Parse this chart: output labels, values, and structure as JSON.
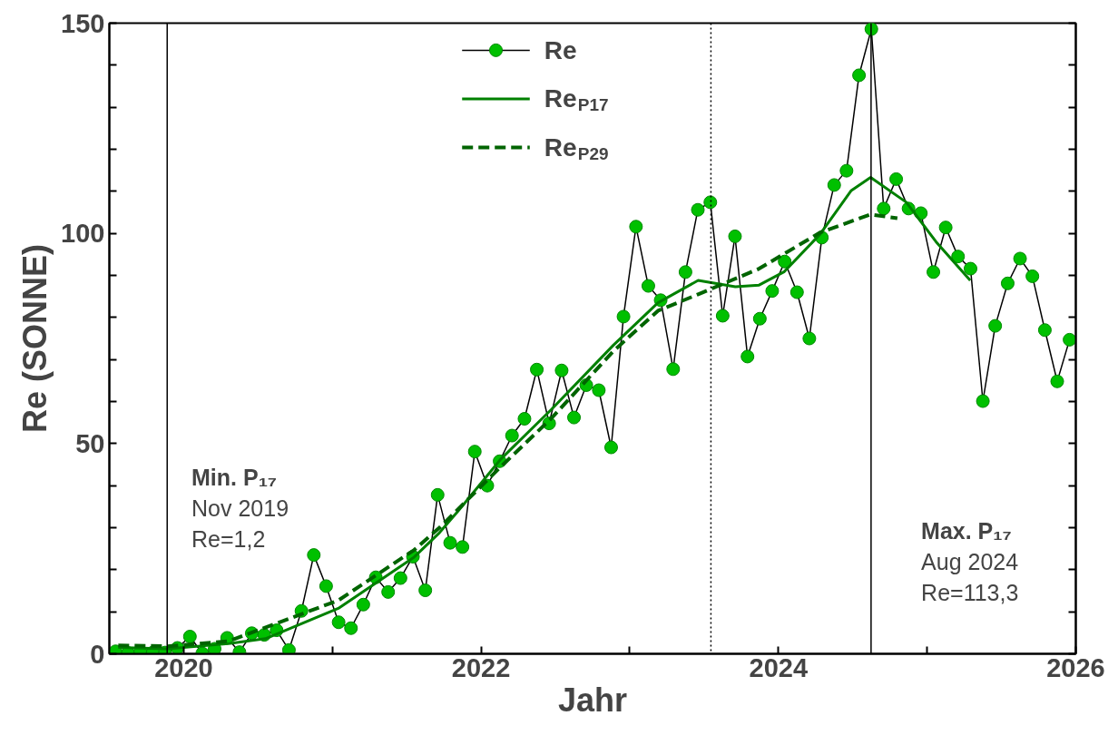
{
  "chart_data": {
    "type": "line",
    "xlabel": "Jahr",
    "ylabel": "Re (SONNE)",
    "xlim": [
      2019.5,
      2026
    ],
    "xticks": [
      2020,
      {
        "value": 2021,
        "label": null
      },
      2022,
      {
        "value": 2023,
        "label": null
      },
      2024,
      {
        "value": 2025,
        "label": null
      },
      2026
    ],
    "ylim": [
      0,
      150
    ],
    "yticks": [
      0,
      {
        "value": 10,
        "label": null
      },
      {
        "value": 20,
        "label": null
      },
      {
        "value": 30,
        "label": null
      },
      {
        "value": 40,
        "label": null
      },
      50,
      {
        "value": 60,
        "label": null
      },
      {
        "value": 70,
        "label": null
      },
      {
        "value": 80,
        "label": null
      },
      {
        "value": 90,
        "label": null
      },
      100,
      {
        "value": 110,
        "label": null
      },
      {
        "value": 120,
        "label": null
      },
      {
        "value": 130,
        "label": null
      },
      {
        "value": 140,
        "label": null
      },
      150
    ],
    "grid": false,
    "legend": "top",
    "series": [
      {
        "name": "Re",
        "marker": "circle",
        "line_style": "solid",
        "color": "#00c000",
        "x": [
          2019.542,
          2019.625,
          2019.708,
          2019.792,
          2019.875,
          2019.958,
          2020.042,
          2020.125,
          2020.208,
          2020.292,
          2020.375,
          2020.458,
          2020.542,
          2020.625,
          2020.708,
          2020.792,
          2020.875,
          2020.958,
          2021.042,
          2021.125,
          2021.208,
          2021.292,
          2021.375,
          2021.458,
          2021.542,
          2021.625,
          2021.708,
          2021.792,
          2021.875,
          2021.958,
          2022.042,
          2022.125,
          2022.208,
          2022.292,
          2022.375,
          2022.458,
          2022.542,
          2022.625,
          2022.708,
          2022.792,
          2022.875,
          2022.958,
          2023.042,
          2023.125,
          2023.208,
          2023.292,
          2023.375,
          2023.458,
          2023.542,
          2023.625,
          2023.708,
          2023.792,
          2023.875,
          2023.958,
          2024.042,
          2024.125,
          2024.208,
          2024.292,
          2024.375,
          2024.458,
          2024.542,
          2024.625,
          2024.708,
          2024.792,
          2024.875,
          2024.958,
          2025.042,
          2025.125,
          2025.208,
          2025.292,
          2025.375,
          2025.458,
          2025.542,
          2025.625,
          2025.708,
          2025.792,
          2025.875,
          2025.958
        ],
        "values": [
          0.6,
          0.2,
          0.6,
          0.3,
          0.3,
          1.4,
          4.1,
          0.1,
          1.2,
          3.8,
          0.4,
          4.9,
          4.5,
          5.6,
          0.9,
          10.2,
          23.5,
          16.1,
          7.5,
          6.1,
          11.7,
          18.2,
          14.7,
          18.0,
          23.1,
          15.1,
          37.8,
          26.4,
          25.4,
          48.1,
          40.0,
          45.8,
          51.9,
          55.9,
          67.6,
          54.8,
          67.4,
          56.2,
          63.9,
          62.7,
          49.1,
          80.2,
          101.6,
          87.5,
          84.1,
          67.7,
          90.8,
          105.6,
          107.4,
          80.4,
          99.3,
          70.7,
          79.7,
          86.3,
          93.3,
          86.0,
          75.0,
          99.0,
          111.5,
          114.9,
          137.6,
          148.6,
          105.9,
          112.9,
          105.9,
          104.8,
          90.8,
          101.4,
          94.5,
          91.6,
          60.1,
          78.0,
          88.1,
          94.0,
          89.8,
          77.0,
          64.8,
          74.7
        ]
      },
      {
        "name": "Re$_{P17}$",
        "marker": "none",
        "line_style": "solid",
        "color": "#008000",
        "x": [
          2019.56,
          2019.89,
          2020.3,
          2020.55,
          2021.04,
          2021.55,
          2021.72,
          2021.84,
          2022.13,
          2022.47,
          2022.89,
          2023.19,
          2023.46,
          2023.71,
          2023.87,
          2024.04,
          2024.28,
          2024.49,
          2024.62,
          2024.86,
          2025.06,
          2025.29
        ],
        "values": [
          1.5,
          1.2,
          2.4,
          3.6,
          10.8,
          23,
          28.8,
          33.7,
          46.2,
          58,
          73.4,
          83.5,
          88.8,
          87.3,
          87.7,
          90.9,
          99.8,
          110.2,
          113.3,
          107.4,
          98,
          88.8
        ]
      },
      {
        "name": "Re$_{P29}$",
        "marker": "none",
        "line_style": "dashed",
        "color": "#006400",
        "x": [
          2019.56,
          2019.89,
          2020.3,
          2021.04,
          2021.55,
          2021.72,
          2022.13,
          2022.47,
          2022.89,
          2023.19,
          2023.46,
          2023.87,
          2024.28,
          2024.62,
          2024.8
        ],
        "values": [
          2.0,
          1.8,
          3,
          12.7,
          24.7,
          30,
          44.4,
          55.9,
          72,
          81.6,
          85.5,
          91.6,
          100.2,
          104.5,
          103.6
        ]
      }
    ],
    "ref_lines": [
      {
        "axis": "x",
        "value": 2019.889,
        "color": "#000000",
        "line_style": "solid"
      },
      {
        "axis": "x",
        "value": 2023.546,
        "color": "#000000",
        "line_style": "dotted"
      },
      {
        "axis": "x",
        "value": 2024.623,
        "color": "#000000",
        "line_style": "solid"
      }
    ],
    "annotations": [
      "Min. P₁₇\nNov 2019\nRe=1,2",
      "Max. P₁₇\nAug 2024\nRe=113,3"
    ]
  }
}
